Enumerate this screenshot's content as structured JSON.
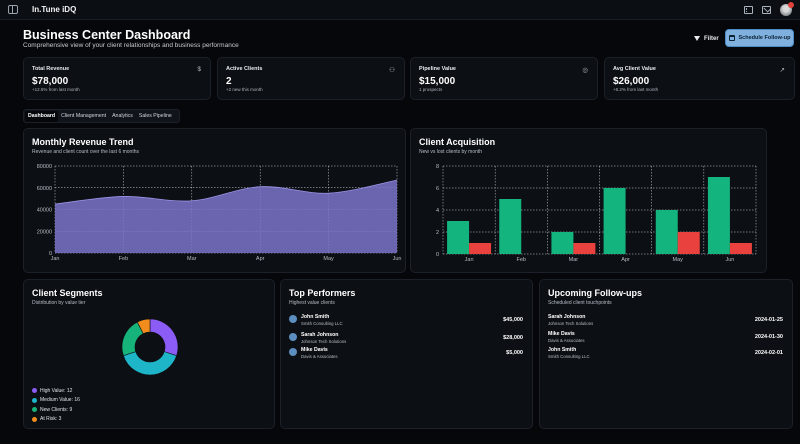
{
  "app": {
    "title": "In.Tune iDQ"
  },
  "header": {
    "title": "Business Center Dashboard",
    "subtitle": "Comprehensive view of your client relationships and business performance",
    "filter_label": "Filter",
    "schedule_label": "Schedule Follow-up"
  },
  "stats": [
    {
      "label": "Total Revenue",
      "value": "$78,000",
      "sub": "+12.5% from last month",
      "icon": "dollar-icon",
      "glyph": "$"
    },
    {
      "label": "Active Clients",
      "value": "2",
      "sub": "+2 new this month",
      "icon": "users-icon",
      "glyph": "⚇"
    },
    {
      "label": "Pipeline Value",
      "value": "$15,000",
      "sub": "1 prospects",
      "icon": "target-icon",
      "glyph": "◎"
    },
    {
      "label": "Avg Client Value",
      "value": "$26,000",
      "sub": "+8.2% from last month",
      "icon": "trending-up-icon",
      "glyph": "↗"
    }
  ],
  "tabs": [
    "Dashboard",
    "Client Management",
    "Analytics",
    "Sales Pipeline"
  ],
  "revenue_chart": {
    "title": "Monthly Revenue Trend",
    "subtitle": "Revenue and client count over the last 6 months"
  },
  "acquisition_chart": {
    "title": "Client Acquisition",
    "subtitle": "New vs lost clients by month"
  },
  "segments": {
    "title": "Client Segments",
    "subtitle": "Distribution by value tier",
    "legend": [
      "High Value: 12",
      "Medium Value: 16",
      "New Clients: 9",
      "At Risk: 3"
    ]
  },
  "top_performers": {
    "title": "Top Performers",
    "subtitle": "Highest value clients",
    "rows": [
      {
        "name": "John Smith",
        "company": "Smith Consulting LLC",
        "value": "$45,000"
      },
      {
        "name": "Sarah Johnson",
        "company": "Johnson Tech Solutions",
        "value": "$28,000"
      },
      {
        "name": "Mike Davis",
        "company": "Davis & Associates",
        "value": "$5,000"
      }
    ]
  },
  "followups": {
    "title": "Upcoming Follow-ups",
    "subtitle": "Scheduled client touchpoints",
    "rows": [
      {
        "name": "Sarah Johnson",
        "company": "Johnson Tech Solutions",
        "date": "2024-01-25"
      },
      {
        "name": "Mike Davis",
        "company": "Davis & Associates",
        "date": "2024-01-30"
      },
      {
        "name": "John Smith",
        "company": "Smith Consulting LLC",
        "date": "2024-02-01"
      }
    ]
  },
  "colors": {
    "area": "#7b74c9",
    "new": "#14b47e",
    "lost": "#e8413e",
    "high": "#8b5cf6",
    "medium": "#1fb5c9",
    "new_clients": "#16b37a",
    "at_risk": "#f28c1c"
  },
  "chart_data": [
    {
      "type": "area",
      "categories": [
        "Jan",
        "Feb",
        "Mar",
        "Apr",
        "May",
        "Jun"
      ],
      "series": [
        {
          "values": [
            45000,
            52000,
            48000,
            61000,
            55000,
            67000
          ]
        }
      ],
      "ylim": [
        0,
        80000
      ],
      "yticks": [
        "0",
        "20000",
        "40000",
        "60000",
        "80000"
      ],
      "grid": true
    },
    {
      "type": "bar",
      "categories": [
        "Jan",
        "Feb",
        "Mar",
        "Apr",
        "May",
        "Jun"
      ],
      "series": [
        {
          "values": [
            3,
            5,
            2,
            6,
            4,
            7
          ]
        },
        {
          "values": [
            1,
            0,
            1,
            0,
            2,
            1
          ]
        }
      ],
      "ylim": [
        0,
        8
      ],
      "yticks": [
        "0",
        "2",
        "4",
        "6",
        "8"
      ],
      "grid": true
    },
    {
      "type": "pie",
      "labels": [
        "High Value",
        "Medium Value",
        "New Clients",
        "At Risk"
      ],
      "values": [
        12,
        16,
        9,
        3
      ],
      "donut": true
    }
  ]
}
